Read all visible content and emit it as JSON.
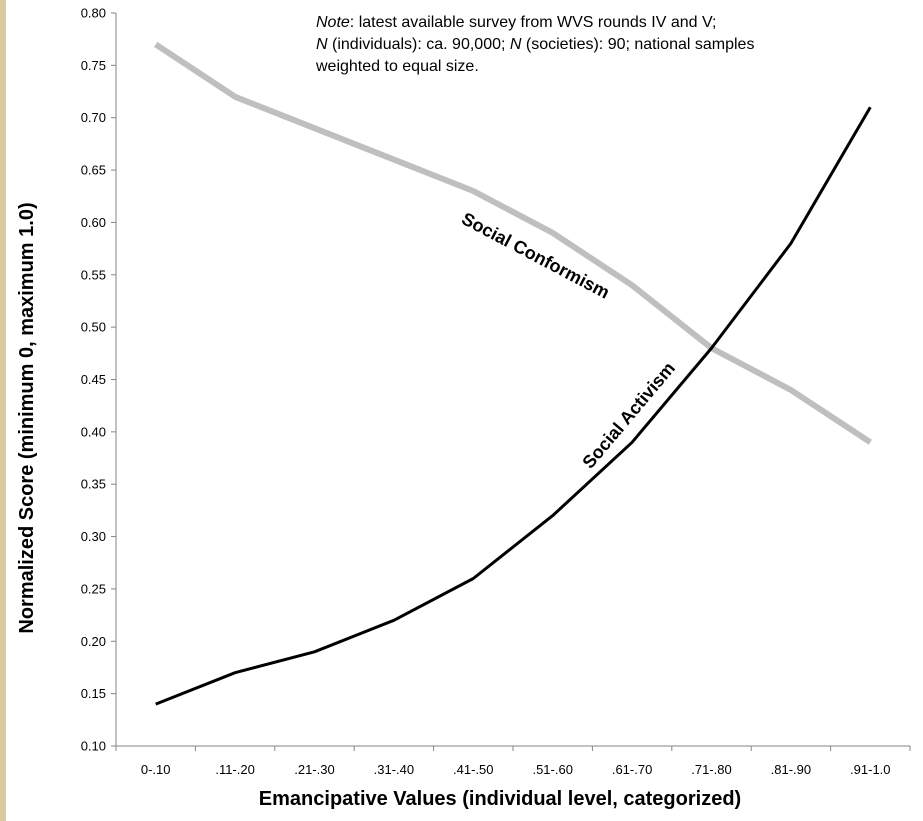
{
  "note": {
    "line1_italic": "Note",
    "line1_rest": ": latest available survey from WVS rounds IV and V;",
    "line2_italic_a": "N",
    "line2_mid": " (individuals): ca. 90,000; ",
    "line2_italic_b": "N",
    "line2_rest": " (societies): 90; national samples",
    "line3": "weighted to equal size."
  },
  "chart_data": {
    "type": "line",
    "title": "",
    "xlabel": "Emancipative Values (individual level, categorized)",
    "ylabel": "Normalized Score (minimum 0, maximum 1.0)",
    "categories": [
      "0-.10",
      ".11-.20",
      ".21-.30",
      ".31-.40",
      ".41-.50",
      ".51-.60",
      ".61-.70",
      ".71-.80",
      ".81-.90",
      ".91-1.0"
    ],
    "ylim": [
      0.1,
      0.8
    ],
    "yticks": [
      "0.10",
      "0.15",
      "0.20",
      "0.25",
      "0.30",
      "0.35",
      "0.40",
      "0.45",
      "0.50",
      "0.55",
      "0.60",
      "0.65",
      "0.70",
      "0.75",
      "0.80"
    ],
    "grid": false,
    "legend": "none",
    "series": [
      {
        "name": "Social Conformism",
        "color": "#bfbfbf",
        "values": [
          0.77,
          0.72,
          0.69,
          0.66,
          0.63,
          0.59,
          0.54,
          0.48,
          0.44,
          0.39
        ]
      },
      {
        "name": "Social Activism",
        "color": "#000000",
        "values": [
          0.14,
          0.17,
          0.19,
          0.22,
          0.26,
          0.32,
          0.39,
          0.48,
          0.58,
          0.71
        ]
      }
    ]
  }
}
